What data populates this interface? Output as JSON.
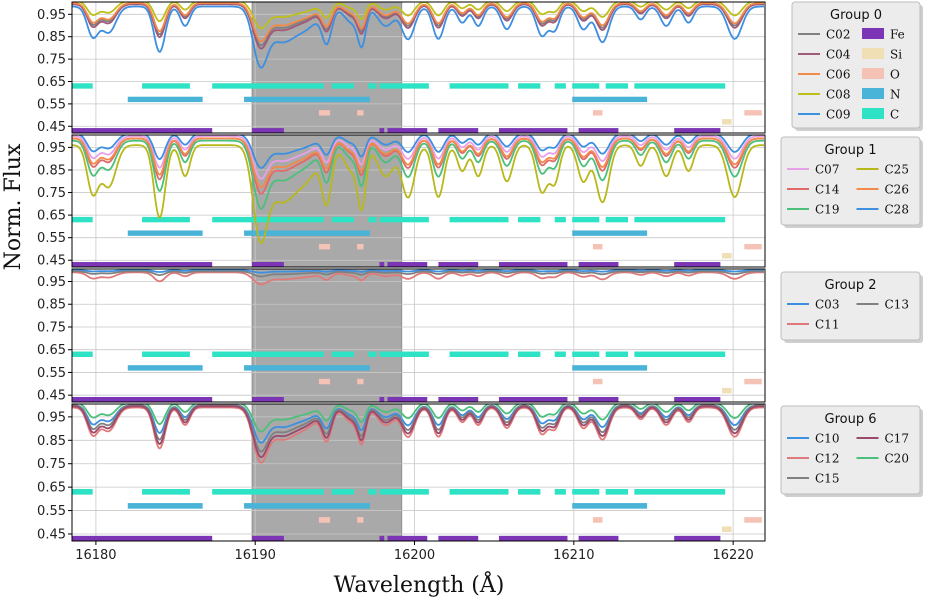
{
  "chart_data": {
    "type": "line",
    "xlabel": "Wavelength (Å)",
    "ylabel": "Norm. Flux",
    "xlim": [
      16178.5,
      16222
    ],
    "ylim": [
      0.42,
      1.005
    ],
    "xticks": [
      16180,
      16190,
      16200,
      16210,
      16220
    ],
    "yticks": [
      0.45,
      0.55,
      0.65,
      0.75,
      0.85,
      0.95
    ],
    "grid": true,
    "shaded_region": [
      16189.8,
      16199.2
    ],
    "line_features": [
      {
        "element": "Fe",
        "color": "#7b35b5",
        "y": 0.43,
        "ranges": [
          [
            16178.5,
            16187.3
          ],
          [
            16189.8,
            16191.8
          ],
          [
            16197.8,
            16198.1
          ],
          [
            16198.3,
            16200.8
          ],
          [
            16201.5,
            16204
          ],
          [
            16205.3,
            16209.6
          ],
          [
            16210.3,
            16212.8
          ],
          [
            16216.3,
            16219.2
          ]
        ]
      },
      {
        "element": "Si",
        "color": "#f0deb4",
        "y": 0.47,
        "ranges": [
          [
            16219.3,
            16219.9
          ]
        ]
      },
      {
        "element": "O",
        "color": "#f5c3b5",
        "y": 0.51,
        "ranges": [
          [
            16194,
            16194.7
          ],
          [
            16196.4,
            16196.8
          ],
          [
            16211.2,
            16211.8
          ],
          [
            16220.7,
            16221.8
          ]
        ]
      },
      {
        "element": "N",
        "color": "#4ab3d8",
        "y": 0.57,
        "ranges": [
          [
            16182,
            16186.7
          ],
          [
            16189.3,
            16197.2
          ],
          [
            16209.9,
            16214.6
          ]
        ]
      },
      {
        "element": "C",
        "color": "#2ee2c5",
        "y": 0.63,
        "ranges": [
          [
            16178.5,
            16179.8
          ],
          [
            16182.9,
            16185.9
          ],
          [
            16187.3,
            16194.3
          ],
          [
            16194.8,
            16196.2
          ],
          [
            16197.1,
            16197.6
          ],
          [
            16197.8,
            16200.9
          ],
          [
            16202.2,
            16205.9
          ],
          [
            16206.5,
            16207.9
          ],
          [
            16208.8,
            16209.5
          ],
          [
            16209.9,
            16211.6
          ],
          [
            16212,
            16213.4
          ],
          [
            16213.8,
            16219.5
          ]
        ]
      }
    ],
    "panels": [
      {
        "title": "Group 0",
        "legend_columns": 2,
        "legend_entries": [
          {
            "label": "C02",
            "kind": "line",
            "color": "#808080"
          },
          {
            "label": "C04",
            "kind": "line",
            "color": "#a05a7a"
          },
          {
            "label": "C06",
            "kind": "line",
            "color": "#f28a4a"
          },
          {
            "label": "C08",
            "kind": "line",
            "color": "#bfbf1a"
          },
          {
            "label": "C09",
            "kind": "line",
            "color": "#3d8fe0"
          },
          {
            "label": "Fe",
            "kind": "patch",
            "color": "#7b35b5"
          },
          {
            "label": "Si",
            "kind": "patch",
            "color": "#f0deb4"
          },
          {
            "label": "O",
            "kind": "patch",
            "color": "#f5c3b5"
          },
          {
            "label": "N",
            "kind": "patch",
            "color": "#4ab3d8"
          },
          {
            "label": "C",
            "kind": "patch",
            "color": "#2ee2c5"
          }
        ],
        "series": [
          {
            "name": "C02",
            "color": "#808080",
            "depth": 1.0,
            "offset": 0.0
          },
          {
            "name": "C04",
            "color": "#a05a7a",
            "depth": 1.05,
            "offset": -0.005
          },
          {
            "name": "C06",
            "color": "#f28a4a",
            "depth": 0.9,
            "offset": 0.0
          },
          {
            "name": "C08",
            "color": "#bfbf1a",
            "depth": 0.65,
            "offset": 0.01
          },
          {
            "name": "C09",
            "color": "#3d8fe0",
            "depth": 1.45,
            "offset": -0.015
          }
        ]
      },
      {
        "title": "Group 1",
        "legend_columns": 2,
        "legend_entries": [
          {
            "label": "C07",
            "kind": "line",
            "color": "#e8a0e8"
          },
          {
            "label": "C14",
            "kind": "line",
            "color": "#e06a6a"
          },
          {
            "label": "C19",
            "kind": "line",
            "color": "#4cc07a"
          },
          {
            "label": "C25",
            "kind": "line",
            "color": "#b8b81a"
          },
          {
            "label": "C26",
            "kind": "line",
            "color": "#f28a4a"
          },
          {
            "label": "C28",
            "kind": "line",
            "color": "#3d8fe0"
          }
        ],
        "series": [
          {
            "name": "C07",
            "color": "#e8a0e8",
            "depth": 1.0,
            "offset": 0.0
          },
          {
            "name": "C14",
            "color": "#e06a6a",
            "depth": 1.3,
            "offset": -0.01
          },
          {
            "name": "C19",
            "color": "#4cc07a",
            "depth": 1.6,
            "offset": -0.02
          },
          {
            "name": "C25",
            "color": "#b8b81a",
            "depth": 2.3,
            "offset": -0.04
          },
          {
            "name": "C26",
            "color": "#f28a4a",
            "depth": 1.15,
            "offset": -0.01
          },
          {
            "name": "C28",
            "color": "#3d8fe0",
            "depth": 0.8,
            "offset": 0.01
          }
        ]
      },
      {
        "title": "Group 2",
        "legend_columns": 2,
        "legend_entries": [
          {
            "label": "C03",
            "kind": "line",
            "color": "#3d8fe0"
          },
          {
            "label": "C11",
            "kind": "line",
            "color": "#e07a7a"
          },
          {
            "label": "C13",
            "kind": "line",
            "color": "#808080"
          }
        ],
        "series": [
          {
            "name": "C03",
            "color": "#3d8fe0",
            "depth": 0.06,
            "offset": 0.0
          },
          {
            "name": "C11",
            "color": "#e07a7a",
            "depth": 0.28,
            "offset": -0.01
          },
          {
            "name": "C13",
            "color": "#808080",
            "depth": 0.12,
            "offset": -0.005
          }
        ]
      },
      {
        "title": "Group 6",
        "legend_columns": 2,
        "legend_entries": [
          {
            "label": "C10",
            "kind": "line",
            "color": "#3d8fe0"
          },
          {
            "label": "C12",
            "kind": "line",
            "color": "#e07a7a"
          },
          {
            "label": "C15",
            "kind": "line",
            "color": "#808080"
          },
          {
            "label": "C17",
            "kind": "line",
            "color": "#9b4a6e"
          },
          {
            "label": "C20",
            "kind": "line",
            "color": "#4cc07a"
          }
        ],
        "series": [
          {
            "name": "C10",
            "color": "#3d8fe0",
            "depth": 0.85,
            "offset": 0.0
          },
          {
            "name": "C12",
            "color": "#e07a7a",
            "depth": 1.25,
            "offset": -0.01
          },
          {
            "name": "C15",
            "color": "#808080",
            "depth": 1.05,
            "offset": 0.0
          },
          {
            "name": "C17",
            "color": "#9b4a6e",
            "depth": 1.15,
            "offset": -0.005
          },
          {
            "name": "C20",
            "color": "#4cc07a",
            "depth": 0.65,
            "offset": 0.01
          }
        ]
      }
    ],
    "absorption_lines": [
      {
        "center": 16179.8,
        "depth": 0.09,
        "width": 0.35
      },
      {
        "center": 16180.8,
        "depth": 0.08,
        "width": 0.45
      },
      {
        "center": 16184.0,
        "depth": 0.14,
        "width": 0.35
      },
      {
        "center": 16185.6,
        "depth": 0.06,
        "width": 0.3
      },
      {
        "center": 16190.3,
        "depth": 0.16,
        "width": 0.45
      },
      {
        "center": 16191.6,
        "depth": 0.1,
        "width": 0.8
      },
      {
        "center": 16193.2,
        "depth": 0.06,
        "width": 0.8
      },
      {
        "center": 16194.5,
        "depth": 0.1,
        "width": 0.3
      },
      {
        "center": 16196.1,
        "depth": 0.05,
        "width": 0.5
      },
      {
        "center": 16196.7,
        "depth": 0.1,
        "width": 0.25
      },
      {
        "center": 16198.2,
        "depth": 0.06,
        "width": 0.5
      },
      {
        "center": 16199.6,
        "depth": 0.1,
        "width": 0.4
      },
      {
        "center": 16201.5,
        "depth": 0.1,
        "width": 0.35
      },
      {
        "center": 16203.0,
        "depth": 0.05,
        "width": 0.3
      },
      {
        "center": 16204.0,
        "depth": 0.06,
        "width": 0.3
      },
      {
        "center": 16205.8,
        "depth": 0.07,
        "width": 0.35
      },
      {
        "center": 16208.0,
        "depth": 0.09,
        "width": 0.35
      },
      {
        "center": 16208.8,
        "depth": 0.07,
        "width": 0.3
      },
      {
        "center": 16210.6,
        "depth": 0.07,
        "width": 0.35
      },
      {
        "center": 16211.8,
        "depth": 0.11,
        "width": 0.4
      },
      {
        "center": 16214.2,
        "depth": 0.04,
        "width": 0.3
      },
      {
        "center": 16215.8,
        "depth": 0.06,
        "width": 0.35
      },
      {
        "center": 16217.2,
        "depth": 0.05,
        "width": 0.3
      },
      {
        "center": 16220.1,
        "depth": 0.1,
        "width": 0.45
      }
    ]
  }
}
